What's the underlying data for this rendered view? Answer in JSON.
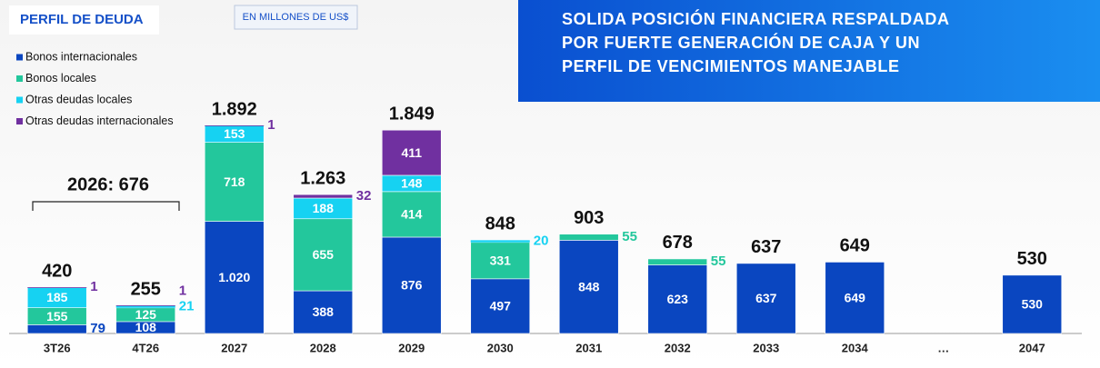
{
  "chart_data": {
    "type": "stacked-bar",
    "title": "PERFIL DE DEUDA",
    "unit": "EN MILLONES DE US$",
    "headline": [
      "SOLIDA POSICIÓN FINANCIERA RESPALDADA",
      "POR FUERTE GENERACIÓN DE CAJA Y UN",
      "PERFIL DE VENCIMIENTOS MANEJABLE"
    ],
    "annotation": "2026: 676",
    "categories": [
      "3T26",
      "4T26",
      "2027",
      "2028",
      "2029",
      "2030",
      "2031",
      "2032",
      "2033",
      "2034",
      "…",
      "2047"
    ],
    "series": [
      {
        "name": "Bonos internacionales",
        "color": "#0a46c0",
        "values": [
          79,
          108,
          1020,
          388,
          876,
          497,
          848,
          623,
          637,
          649,
          null,
          530
        ],
        "value_labels": [
          "79",
          "108",
          "1.020",
          "388",
          "876",
          "497",
          "848",
          "623",
          "637",
          "649",
          null,
          "530"
        ]
      },
      {
        "name": "Bonos locales",
        "color": "#23c79c",
        "values": [
          155,
          125,
          718,
          655,
          414,
          331,
          55,
          55,
          null,
          null,
          null,
          null
        ],
        "value_labels": [
          "155",
          "125",
          "718",
          "655",
          "414",
          "331",
          "55",
          "55",
          null,
          null,
          null,
          null
        ]
      },
      {
        "name": "Otras deudas locales",
        "color": "#16d2f2",
        "values": [
          185,
          21,
          153,
          188,
          148,
          20,
          null,
          null,
          null,
          null,
          null,
          null
        ],
        "value_labels": [
          "185",
          "21",
          "153",
          "188",
          "148",
          "20",
          null,
          null,
          null,
          null,
          null,
          null
        ]
      },
      {
        "name": "Otras deudas internacionales",
        "color": "#7030a0",
        "values": [
          1,
          1,
          1,
          32,
          411,
          null,
          null,
          null,
          null,
          null,
          null,
          null
        ],
        "value_labels": [
          "1",
          "1",
          "1",
          "32",
          "411",
          null,
          null,
          null,
          null,
          null,
          null,
          null
        ]
      }
    ],
    "totals": {
      "values": [
        420,
        255,
        1892,
        1263,
        1849,
        848,
        903,
        678,
        637,
        649,
        null,
        530
      ],
      "value_labels": [
        "420",
        "255",
        "1.892",
        "1.263",
        "1.849",
        "848",
        "903",
        "678",
        "637",
        "649",
        null,
        "530"
      ]
    }
  }
}
